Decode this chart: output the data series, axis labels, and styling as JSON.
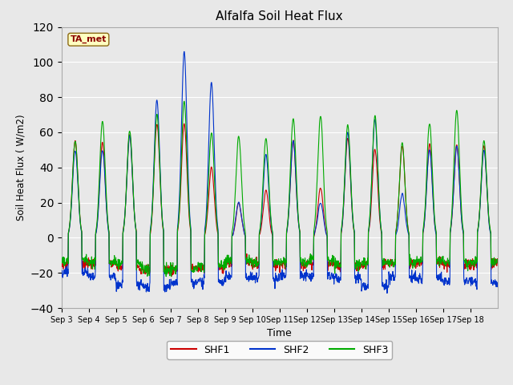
{
  "title": "Alfalfa Soil Heat Flux",
  "xlabel": "Time",
  "ylabel": "Soil Heat Flux ( W/m2)",
  "ylim": [
    -40,
    120
  ],
  "yticks": [
    -40,
    -20,
    0,
    20,
    40,
    60,
    80,
    100,
    120
  ],
  "plot_bg_color": "#e8e8e8",
  "shf1_color": "#cc0000",
  "shf2_color": "#0033cc",
  "shf3_color": "#00aa00",
  "legend_labels": [
    "SHF1",
    "SHF2",
    "SHF3"
  ],
  "annotation_text": "TA_met",
  "annotation_color": "#8b0000",
  "annotation_bg": "#ffffc0",
  "n_days": 16,
  "points_per_day": 96,
  "start_day": 3,
  "day_peaks_shf1": [
    55,
    54,
    59,
    65,
    65,
    40,
    20,
    27,
    55,
    28,
    57,
    50,
    52,
    53,
    53,
    52
  ],
  "day_peaks_shf2": [
    50,
    50,
    58,
    78,
    105,
    88,
    20,
    47,
    55,
    20,
    60,
    67,
    25,
    50,
    52,
    50
  ],
  "day_peaks_shf3": [
    55,
    66,
    61,
    70,
    78,
    60,
    58,
    57,
    68,
    70,
    65,
    69,
    53,
    65,
    73,
    55
  ],
  "night_min_shf1": [
    -15,
    -15,
    -17,
    -18,
    -18,
    -17,
    -14,
    -15,
    -15,
    -14,
    -16,
    -15,
    -15,
    -14,
    -15,
    -15
  ],
  "night_min_shf2": [
    -20,
    -22,
    -27,
    -28,
    -26,
    -25,
    -22,
    -23,
    -21,
    -22,
    -23,
    -27,
    -22,
    -23,
    -25,
    -25
  ],
  "night_min_shf3": [
    -13,
    -14,
    -15,
    -18,
    -18,
    -16,
    -13,
    -14,
    -14,
    -13,
    -15,
    -14,
    -14,
    -13,
    -14,
    -14
  ]
}
